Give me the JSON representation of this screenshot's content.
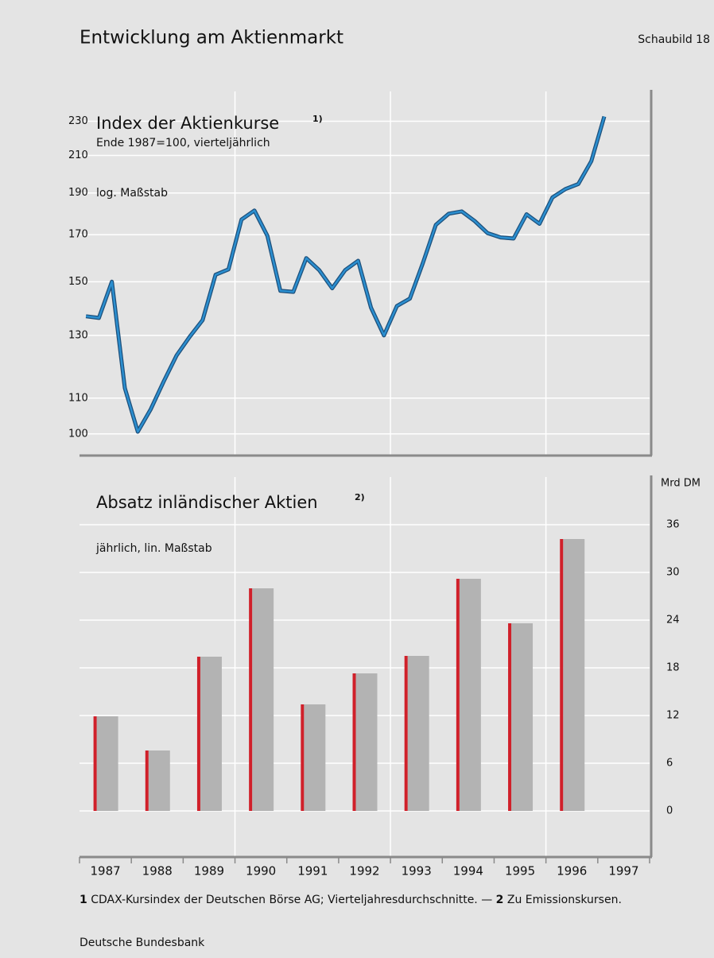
{
  "header": {
    "title": "Entwicklung am Aktienmarkt",
    "figure": "Schaubild 18"
  },
  "chart_data": [
    {
      "type": "line",
      "title": "Index der Aktienkurse",
      "title_note": "1)",
      "subtitle": "Ende 1987=100, vierteljährlich",
      "annotation": "log. Maßstab",
      "log_scale": true,
      "grid": true,
      "color": "#2b8fd0",
      "x": [
        1987.125,
        1987.375,
        1987.625,
        1987.875,
        1988.125,
        1988.375,
        1988.625,
        1988.875,
        1989.125,
        1989.375,
        1989.625,
        1989.875,
        1990.125,
        1990.375,
        1990.625,
        1990.875,
        1991.125,
        1991.375,
        1991.625,
        1991.875,
        1992.125,
        1992.375,
        1992.625,
        1992.875,
        1993.125,
        1993.375,
        1993.625,
        1993.875,
        1994.125,
        1994.375,
        1994.625,
        1994.875,
        1995.125,
        1995.375,
        1995.625,
        1995.875,
        1996.125,
        1996.375,
        1996.625,
        1996.875,
        1997.125
      ],
      "values": [
        136.8,
        136.2,
        150,
        113,
        100.6,
        106.8,
        115,
        123.3,
        129.5,
        135.4,
        152.8,
        155,
        177,
        181.3,
        169.5,
        146.4,
        146,
        159.7,
        154.7,
        147.4,
        154.7,
        158.6,
        140,
        130,
        140.6,
        143.4,
        157.6,
        174.5,
        179.8,
        180.9,
        176.3,
        170.7,
        168.8,
        168.3,
        179.5,
        175,
        187.7,
        192,
        194.6,
        206.8,
        232.9
      ],
      "xlim": [
        1987,
        1998
      ],
      "xgrid": [
        1990,
        1993,
        1996
      ],
      "ylim": [
        94.4,
        249
      ],
      "yticks": [
        100,
        110,
        130,
        150,
        170,
        190,
        210,
        230
      ]
    },
    {
      "type": "bar",
      "title": "Absatz inländischer Aktien",
      "title_note": "2)",
      "subtitle": "jährlich, lin. Maßstab",
      "unit": "Mrd DM",
      "grid": true,
      "color": "#b3b3b3",
      "accent_color": "#d0202a",
      "categories": [
        "1987",
        "1988",
        "1989",
        "1990",
        "1991",
        "1992",
        "1993",
        "1994",
        "1995",
        "1996",
        "1997"
      ],
      "values": [
        11.9,
        7.6,
        19.4,
        28,
        13.4,
        17.3,
        19.5,
        29.2,
        23.6,
        34.2,
        null
      ],
      "xgrid": [
        3,
        6,
        9
      ],
      "ylim": [
        -5.8,
        42
      ],
      "yticks": [
        0,
        6,
        12,
        18,
        24,
        30,
        36
      ]
    }
  ],
  "footnotes": [
    {
      "marker": "1",
      "text": "CDAX-Kursindex der Deutschen Börse AG; Vierteljahresdurchschnitte. —"
    },
    {
      "marker": "2",
      "text": "Zu Emissionskursen."
    }
  ],
  "source": "Deutsche Bundesbank"
}
